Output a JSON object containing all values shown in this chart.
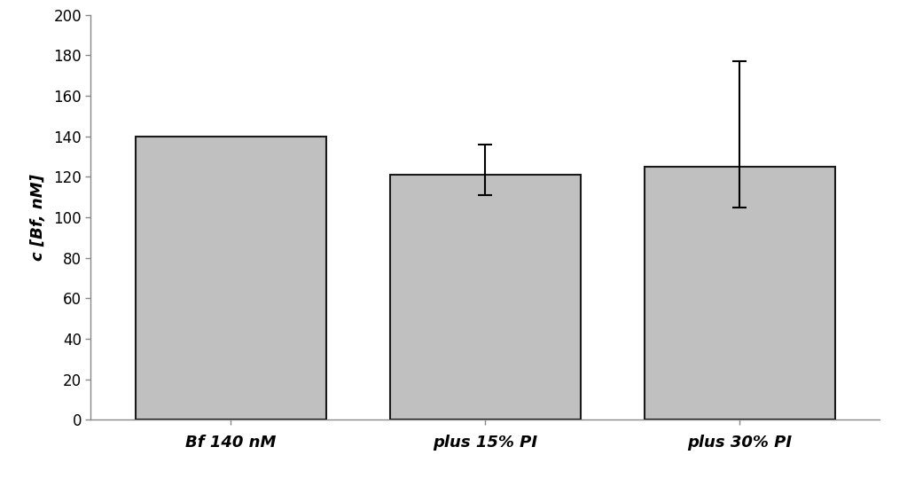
{
  "categories": [
    "Bf 140 nM",
    "plus 15% PI",
    "plus 30% PI"
  ],
  "values": [
    140,
    121,
    125
  ],
  "errors_upper": [
    0,
    15,
    52
  ],
  "errors_lower": [
    0,
    10,
    20
  ],
  "bar_color": "#c0c0c0",
  "bar_edgecolor": "#1a1a1a",
  "bar_linewidth": 1.5,
  "ylabel": "c [Bf, nM]",
  "ylim": [
    0,
    200
  ],
  "yticks": [
    0,
    20,
    40,
    60,
    80,
    100,
    120,
    140,
    160,
    180,
    200
  ],
  "background_color": "#ffffff",
  "ylabel_fontsize": 13,
  "xtick_fontsize": 13,
  "ytick_fontsize": 12,
  "bar_width": 0.75,
  "capsize": 6,
  "elinewidth": 1.5,
  "ecapthick": 1.5
}
